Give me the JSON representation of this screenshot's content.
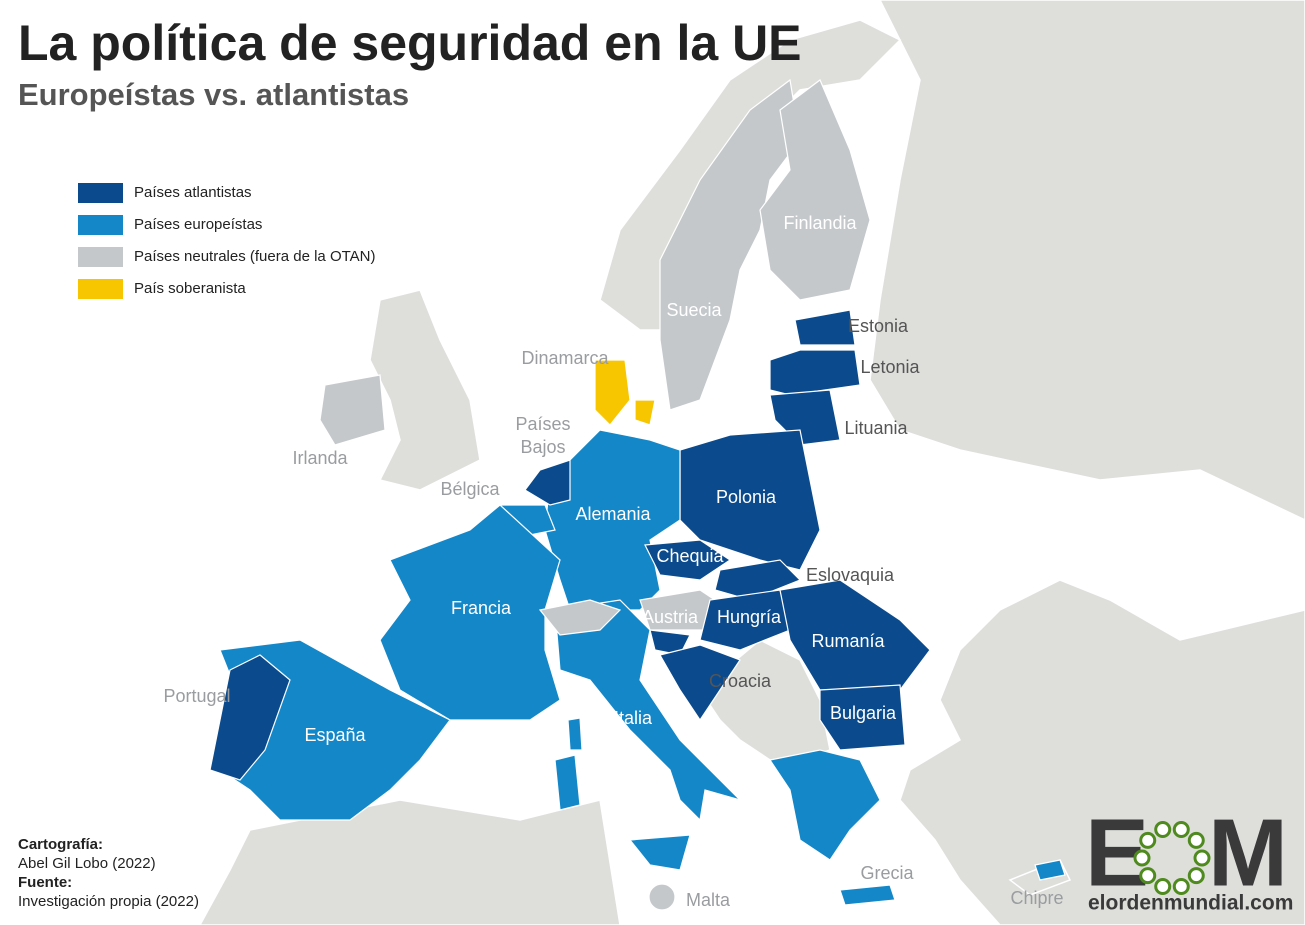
{
  "header": {
    "title": "La política de seguridad en la UE",
    "subtitle": "Europeístas vs. atlantistas"
  },
  "legend": [
    {
      "label": "Países atlantistas",
      "color": "#0b4a8c"
    },
    {
      "label": "Países europeístas",
      "color": "#1487c9"
    },
    {
      "label": "Países neutrales (fuera de la OTAN)",
      "color": "#c4c8cb"
    },
    {
      "label": "País soberanista",
      "color": "#f7c600"
    }
  ],
  "labels": [
    "Finlandia",
    "Suecia",
    "Estonia",
    "Letonia",
    "Lituania",
    "Dinamarca",
    "Países",
    "Bajos",
    "Irlanda",
    "Bélgica",
    "Alemania",
    "Polonia",
    "Chequia",
    "Eslovaquia",
    "Francia",
    "Austria",
    "Hungría",
    "Rumanía",
    "Portugal",
    "Croacia",
    "España",
    "Italia",
    "Bulgaria",
    "Grecia",
    "Malta",
    "Chipre"
  ],
  "credits": {
    "map_heading": "Cartografía:",
    "map_author": "Abel Gil Lobo (2022)",
    "source_heading": "Fuente:",
    "source": "Investigación propia (2022)"
  },
  "logo": {
    "left": "E",
    "right": "M",
    "site": "elordenmundial.com"
  }
}
